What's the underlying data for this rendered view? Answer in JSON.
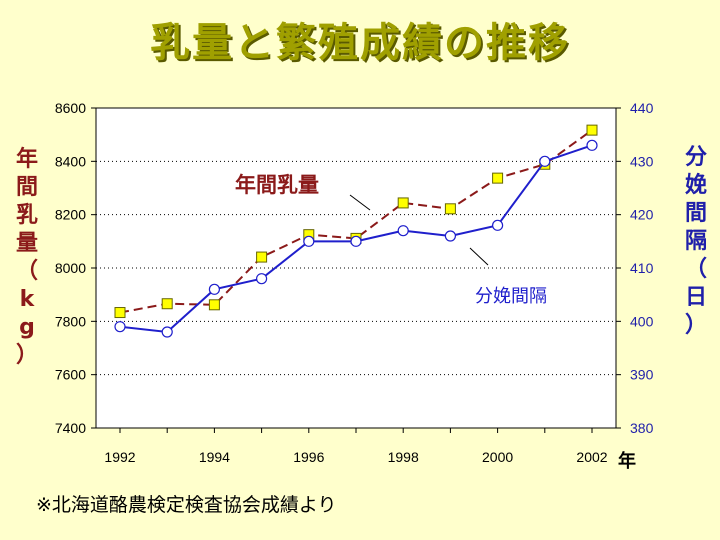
{
  "title": "乳量と繁殖成績の推移",
  "footnote": "※北海道酪農検定検査協会成績より",
  "chart_data": {
    "type": "line",
    "x": [
      1992,
      1993,
      1994,
      1995,
      1996,
      1997,
      1998,
      1999,
      2000,
      2001,
      2002
    ],
    "x_ticks": [
      "1992",
      "1994",
      "1996",
      "1998",
      "2000",
      "2002"
    ],
    "x_unit": "年",
    "y_left": {
      "label": "年間乳量（kg）",
      "lim": [
        7400,
        8600
      ],
      "ticks": [
        "7400",
        "7600",
        "7800",
        "8000",
        "8200",
        "8400",
        "8600"
      ],
      "color": "#8B1A1A"
    },
    "y_right": {
      "label": "分娩間隔（日）",
      "lim": [
        380,
        440
      ],
      "ticks": [
        "380",
        "390",
        "400",
        "410",
        "420",
        "430",
        "440"
      ],
      "color": "#1F1FAA"
    },
    "series": [
      {
        "name": "年間乳量",
        "axis": "left",
        "values": [
          7833,
          7866,
          7862,
          8041,
          8125,
          8111,
          8244,
          8222,
          8337,
          8389,
          8517
        ],
        "line_color": "#8B1A1A",
        "line_style": "dashed",
        "marker": "square",
        "marker_color": "#FFFF00"
      },
      {
        "name": "分娩間隔",
        "axis": "right",
        "values": [
          399,
          398,
          406,
          408,
          415,
          415,
          417,
          416,
          418,
          430,
          433
        ],
        "line_color": "#1F1FCC",
        "line_style": "solid",
        "marker": "circle",
        "marker_color": "#FFFFFF"
      }
    ],
    "grid": "horizontal dotted",
    "plot_background": "#FFFFFF"
  }
}
